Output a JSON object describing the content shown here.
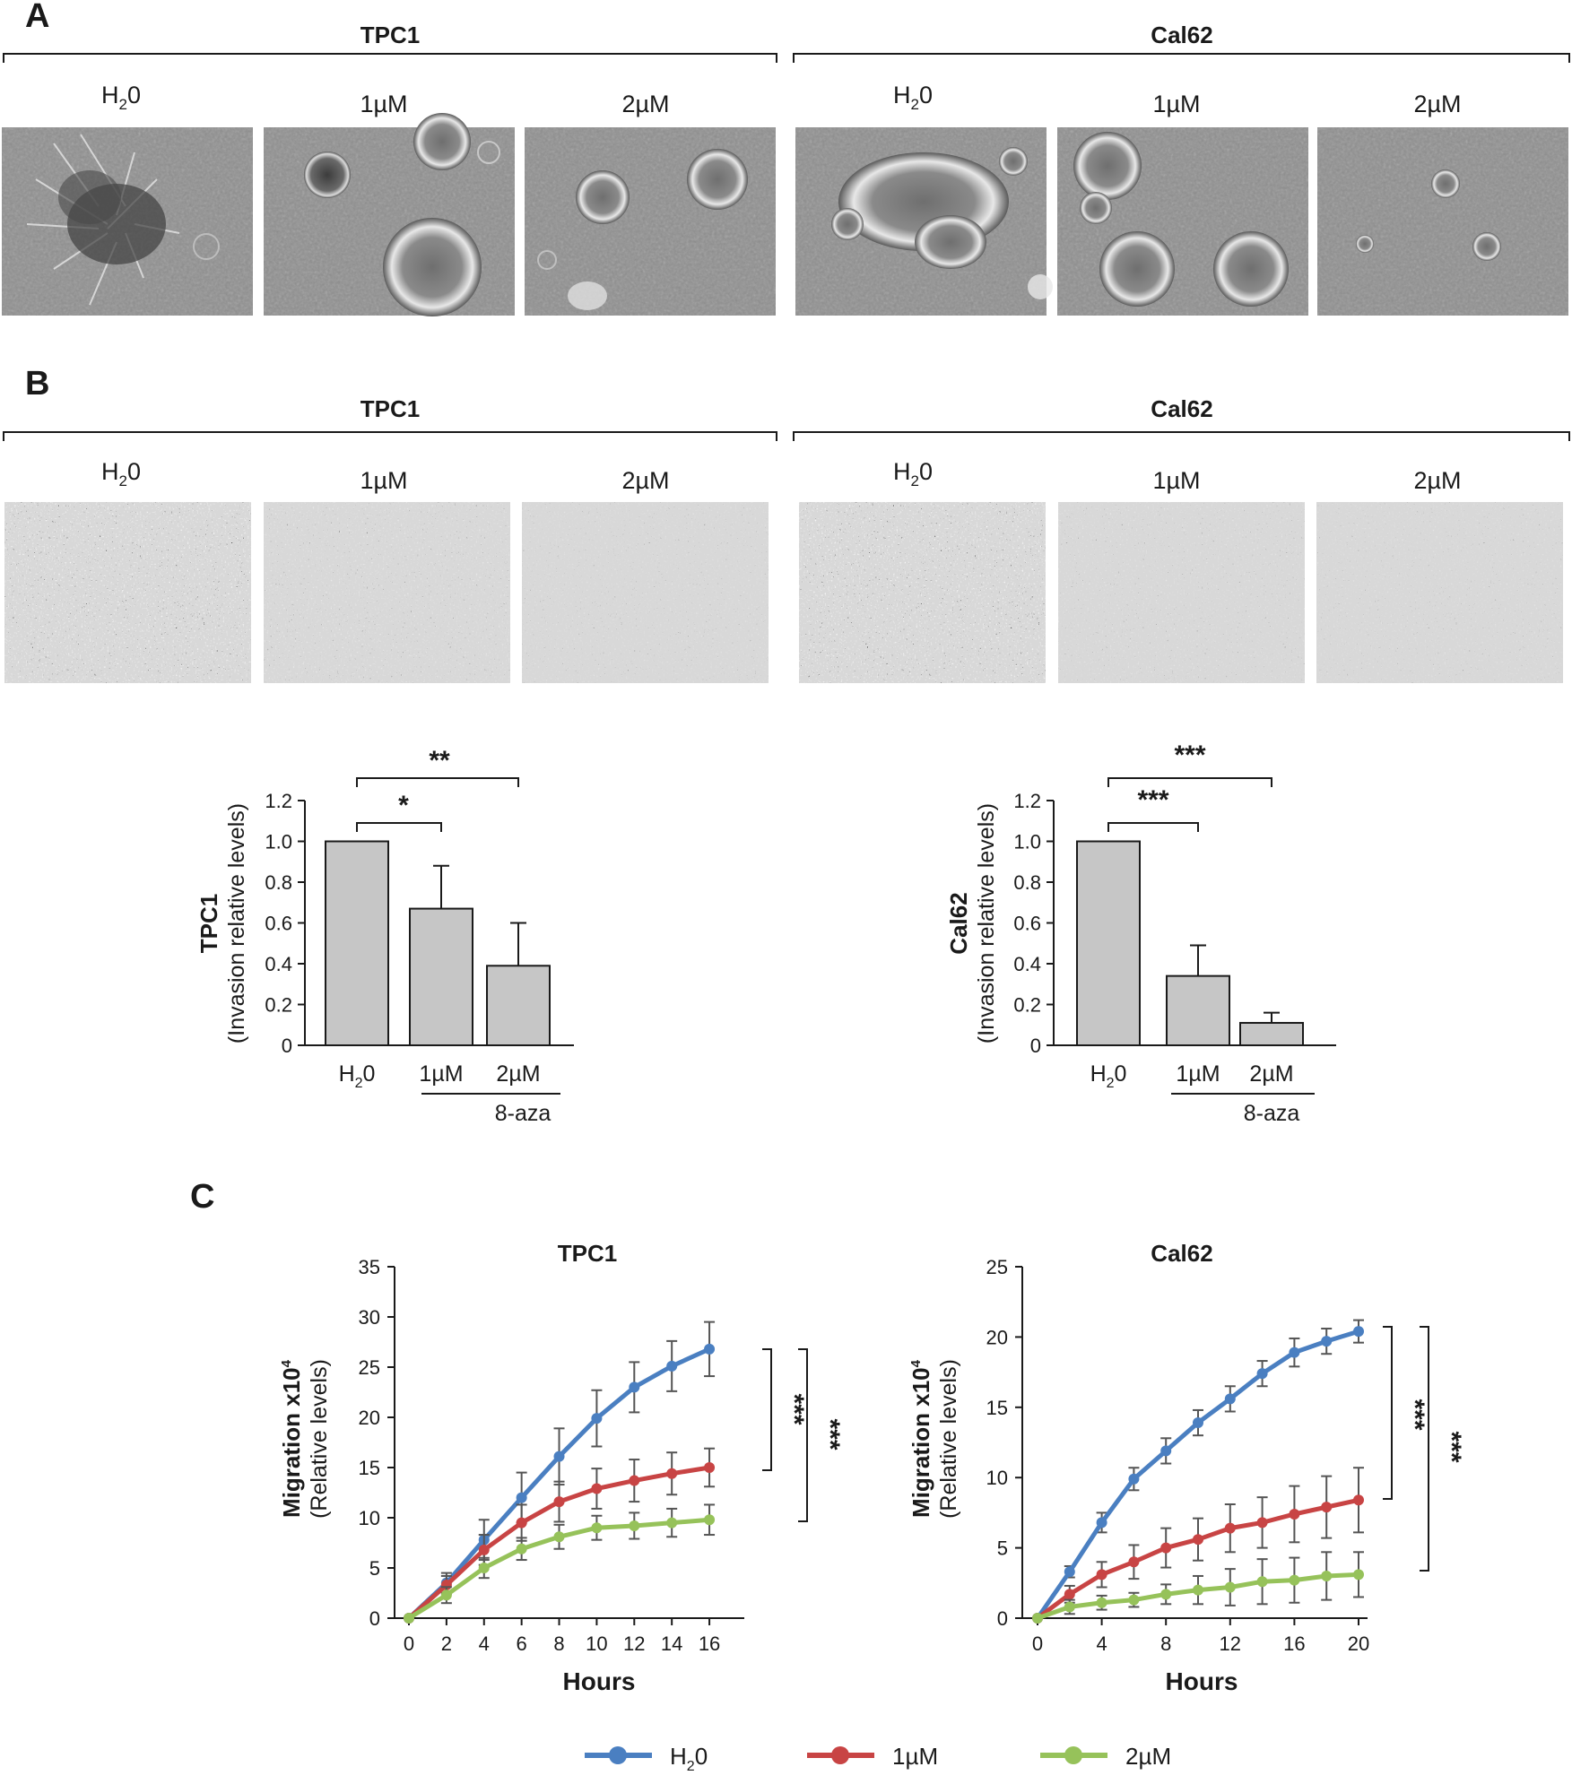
{
  "panels": {
    "a": "A",
    "b": "B",
    "c": "C"
  },
  "groups": [
    "TPC1",
    "Cal62"
  ],
  "conditions": [
    {
      "main": "H",
      "sub": "2",
      "tail": "0"
    },
    {
      "main": "1µM",
      "sub": "",
      "tail": ""
    },
    {
      "main": "2µM",
      "sub": "",
      "tail": ""
    }
  ],
  "colors": {
    "h2o": "#4a7fc1",
    "um1": "#c84444",
    "um2": "#96c25a",
    "bar": "#c6c6c6",
    "errbar": "#555555"
  },
  "micrographs": {
    "spheroid_background": "#8f8f8f",
    "invasion_background": "#d8d8d8"
  },
  "bar_charts": [
    {
      "cell_line": "TPC1",
      "ylabel_bold": "TPC1",
      "ylabel": "(Invasion relative levels)",
      "treatment": "8-aza",
      "sig_top": "**",
      "sig_low": "*"
    },
    {
      "cell_line": "Cal62",
      "ylabel_bold": "Cal62",
      "ylabel": "(Invasion relative levels)",
      "treatment": "8-aza",
      "sig_top": "***",
      "sig_low": "***"
    }
  ],
  "line_charts": [
    {
      "title": "TPC1",
      "ylabel_bold": "Migration x10",
      "ylabel_sup": "4",
      "ylabel": "(Relative levels)",
      "xlabel": "Hours",
      "sig": [
        "***",
        "***"
      ]
    },
    {
      "title": "Cal62",
      "ylabel_bold": "Migration x10",
      "ylabel_sup": "4",
      "ylabel": "(Relative levels)",
      "xlabel": "Hours",
      "sig": [
        "***",
        "***"
      ]
    }
  ],
  "legend": [
    {
      "main": "H",
      "sub": "2",
      "tail": "0",
      "color_key": "h2o"
    },
    {
      "main": "1µM",
      "sub": "",
      "tail": "",
      "color_key": "um1"
    },
    {
      "main": "2µM",
      "sub": "",
      "tail": "",
      "color_key": "um2"
    }
  ],
  "chart_data": [
    {
      "type": "bar",
      "title": "",
      "ylabel": "TPC1 (Invasion relative levels)",
      "categories": [
        "H20",
        "1µM",
        "2µM"
      ],
      "values": [
        1.0,
        0.67,
        0.39
      ],
      "errors": [
        0.0,
        0.21,
        0.21
      ],
      "ylim": [
        0,
        1.2
      ],
      "yticks": [
        "0",
        "0.2",
        "0.4",
        "0.6",
        "0.8",
        "1.0",
        "1.2"
      ],
      "grid": false
    },
    {
      "type": "bar",
      "title": "",
      "ylabel": "Cal62 (Invasion relative levels)",
      "categories": [
        "H20",
        "1µM",
        "2µM"
      ],
      "values": [
        1.0,
        0.34,
        0.11
      ],
      "errors": [
        0.0,
        0.15,
        0.05
      ],
      "ylim": [
        0,
        1.2
      ],
      "yticks": [
        "0",
        "0.2",
        "0.4",
        "0.6",
        "0.8",
        "1.0",
        "1.2"
      ],
      "grid": false
    },
    {
      "type": "line",
      "title": "TPC1",
      "xlabel": "Hours",
      "ylabel": "Migration x10^4 (Relative levels)",
      "xlim": [
        0,
        17
      ],
      "ylim": [
        0,
        35
      ],
      "xticks": [
        "0",
        "2",
        "4",
        "6",
        "8",
        "10",
        "12",
        "14",
        "16"
      ],
      "yticks": [
        "0",
        "5",
        "10",
        "15",
        "20",
        "25",
        "30",
        "35"
      ],
      "grid": false,
      "x": [
        0,
        2,
        4,
        6,
        8,
        10,
        12,
        14,
        16
      ],
      "series": [
        {
          "values": [
            0,
            3.5,
            7.8,
            12.0,
            16.1,
            19.9,
            23.0,
            25.1,
            26.8
          ],
          "errors": [
            0,
            1.0,
            2.0,
            2.5,
            2.8,
            2.8,
            2.5,
            2.5,
            2.7
          ],
          "color_key": "h2o"
        },
        {
          "values": [
            0,
            3.3,
            6.8,
            9.5,
            11.6,
            12.9,
            13.7,
            14.4,
            15.0
          ],
          "errors": [
            0,
            0.9,
            1.5,
            1.8,
            2.0,
            2.0,
            2.1,
            2.1,
            1.9
          ],
          "color_key": "um1"
        },
        {
          "values": [
            0,
            2.3,
            5.0,
            6.9,
            8.1,
            9.0,
            9.2,
            9.5,
            9.8
          ],
          "errors": [
            0,
            0.8,
            1.0,
            1.1,
            1.2,
            1.2,
            1.3,
            1.4,
            1.5
          ],
          "color_key": "um2"
        }
      ]
    },
    {
      "type": "line",
      "title": "Cal62",
      "xlabel": "Hours",
      "ylabel": "Migration x10^4 (Relative levels)",
      "xlim": [
        0,
        20
      ],
      "ylim": [
        0,
        25
      ],
      "xticks": [
        "0",
        "4",
        "8",
        "12",
        "16",
        "20"
      ],
      "yticks": [
        "0",
        "5",
        "10",
        "15",
        "20",
        "25"
      ],
      "grid": false,
      "x": [
        0,
        2,
        4,
        6,
        8,
        10,
        12,
        14,
        16,
        18,
        20
      ],
      "series": [
        {
          "values": [
            0,
            3.3,
            6.8,
            9.9,
            11.9,
            13.9,
            15.6,
            17.4,
            18.9,
            19.7,
            20.4
          ],
          "errors": [
            0,
            0.4,
            0.7,
            0.8,
            0.9,
            0.9,
            0.9,
            0.9,
            1.0,
            0.9,
            0.8
          ],
          "color_key": "h2o"
        },
        {
          "values": [
            0,
            1.7,
            3.1,
            4.0,
            5.0,
            5.6,
            6.4,
            6.8,
            7.4,
            7.9,
            8.4
          ],
          "errors": [
            0,
            0.6,
            0.9,
            1.2,
            1.4,
            1.5,
            1.7,
            1.8,
            2.0,
            2.2,
            2.3
          ],
          "color_key": "um1"
        },
        {
          "values": [
            0,
            0.8,
            1.1,
            1.3,
            1.7,
            2.0,
            2.2,
            2.6,
            2.7,
            3.0,
            3.1
          ],
          "errors": [
            0,
            0.5,
            0.5,
            0.5,
            0.7,
            1.0,
            1.3,
            1.6,
            1.6,
            1.7,
            1.6
          ],
          "color_key": "um2"
        }
      ]
    }
  ]
}
